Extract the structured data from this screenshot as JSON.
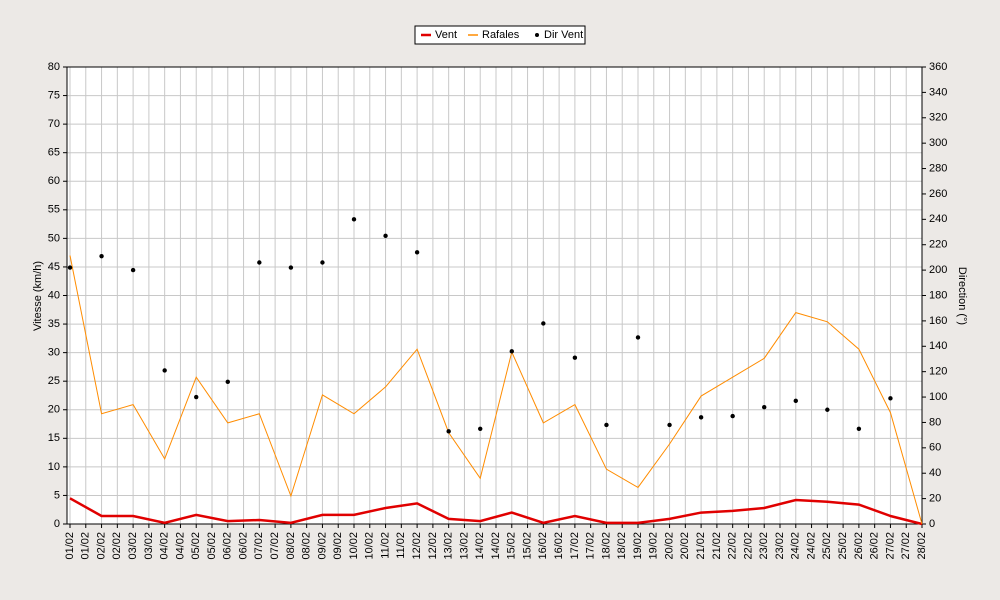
{
  "chart_data": {
    "type": "line",
    "ylabel": "Vitesse (km/h)",
    "y2label": "Direction (°)",
    "x": [
      0,
      1,
      2,
      3,
      4,
      5,
      6,
      7,
      8,
      9,
      10,
      11,
      12,
      13,
      14,
      15,
      16,
      17,
      18,
      19,
      20,
      21,
      22,
      23,
      24,
      25,
      26,
      27
    ],
    "xlim": [
      0,
      27
    ],
    "xticks": [
      {
        "value": 0,
        "label": "01/02"
      },
      {
        "value": 0.5,
        "label": "01/02"
      },
      {
        "value": 1,
        "label": "02/02"
      },
      {
        "value": 1.5,
        "label": "02/02"
      },
      {
        "value": 2,
        "label": "03/02"
      },
      {
        "value": 2.5,
        "label": "03/02"
      },
      {
        "value": 3,
        "label": "04/02"
      },
      {
        "value": 3.5,
        "label": "04/02"
      },
      {
        "value": 4,
        "label": "05/02"
      },
      {
        "value": 4.5,
        "label": "05/02"
      },
      {
        "value": 5,
        "label": "06/02"
      },
      {
        "value": 5.5,
        "label": "06/02"
      },
      {
        "value": 6,
        "label": "07/02"
      },
      {
        "value": 6.5,
        "label": "07/02"
      },
      {
        "value": 7,
        "label": "08/02"
      },
      {
        "value": 7.5,
        "label": "08/02"
      },
      {
        "value": 8,
        "label": "09/02"
      },
      {
        "value": 8.5,
        "label": "09/02"
      },
      {
        "value": 9,
        "label": "10/02"
      },
      {
        "value": 9.5,
        "label": "10/02"
      },
      {
        "value": 10,
        "label": "11/02"
      },
      {
        "value": 10.5,
        "label": "11/02"
      },
      {
        "value": 11,
        "label": "12/02"
      },
      {
        "value": 11.5,
        "label": "12/02"
      },
      {
        "value": 12,
        "label": "13/02"
      },
      {
        "value": 12.5,
        "label": "13/02"
      },
      {
        "value": 13,
        "label": "14/02"
      },
      {
        "value": 13.5,
        "label": "14/02"
      },
      {
        "value": 14,
        "label": "15/02"
      },
      {
        "value": 14.5,
        "label": "15/02"
      },
      {
        "value": 15,
        "label": "16/02"
      },
      {
        "value": 15.5,
        "label": "16/02"
      },
      {
        "value": 16,
        "label": "17/02"
      },
      {
        "value": 16.5,
        "label": "17/02"
      },
      {
        "value": 17,
        "label": "18/02"
      },
      {
        "value": 17.5,
        "label": "18/02"
      },
      {
        "value": 18,
        "label": "19/02"
      },
      {
        "value": 18.5,
        "label": "19/02"
      },
      {
        "value": 19,
        "label": "20/02"
      },
      {
        "value": 19.5,
        "label": "20/02"
      },
      {
        "value": 20,
        "label": "21/02"
      },
      {
        "value": 20.5,
        "label": "21/02"
      },
      {
        "value": 21,
        "label": "22/02"
      },
      {
        "value": 21.5,
        "label": "22/02"
      },
      {
        "value": 22,
        "label": "23/02"
      },
      {
        "value": 22.5,
        "label": "23/02"
      },
      {
        "value": 23,
        "label": "24/02"
      },
      {
        "value": 23.5,
        "label": "24/02"
      },
      {
        "value": 24,
        "label": "25/02"
      },
      {
        "value": 24.5,
        "label": "25/02"
      },
      {
        "value": 25,
        "label": "26/02"
      },
      {
        "value": 25.5,
        "label": "26/02"
      },
      {
        "value": 26,
        "label": "27/02"
      },
      {
        "value": 26.5,
        "label": "27/02"
      },
      {
        "value": 27,
        "label": "28/02"
      }
    ],
    "ylim": [
      0,
      80
    ],
    "yticks": [
      0,
      5,
      10,
      15,
      20,
      25,
      30,
      35,
      40,
      45,
      50,
      55,
      60,
      65,
      70,
      75,
      80
    ],
    "y2lim": [
      0,
      360
    ],
    "y2ticks": [
      0,
      20,
      40,
      60,
      80,
      100,
      120,
      140,
      160,
      180,
      200,
      220,
      240,
      260,
      280,
      300,
      320,
      340,
      360
    ],
    "grid": true,
    "series": [
      {
        "name": "Vent",
        "color": "#e00000",
        "values": [
          4.5,
          1.4,
          1.4,
          0.2,
          1.6,
          0.5,
          0.7,
          0.2,
          1.6,
          1.6,
          2.8,
          3.6,
          0.9,
          0.5,
          2,
          0.2,
          1.4,
          0.2,
          0.2,
          0.9,
          2,
          2.3,
          2.8,
          4.2,
          3.9,
          3.4,
          1.4,
          0
        ]
      },
      {
        "name": "Rafales",
        "color": "#ff8c00",
        "values": [
          47,
          19.3,
          20.9,
          11.4,
          25.7,
          17.7,
          19.3,
          4.9,
          22.6,
          19.3,
          24,
          30.6,
          16,
          8,
          30.1,
          17.7,
          20.9,
          9.6,
          6.4,
          14,
          22.4,
          25.7,
          29,
          37,
          35.4,
          30.6,
          19.5,
          0
        ]
      },
      {
        "name": "Dir Vent",
        "color": "#000000",
        "axis": "y2",
        "marker": "dot",
        "values": [
          202,
          211,
          200,
          121,
          100,
          112,
          206,
          202,
          206,
          240,
          227,
          214,
          73,
          75,
          136,
          158,
          131,
          78,
          147,
          78,
          84,
          85,
          92,
          97,
          90,
          75,
          99,
          null
        ]
      }
    ]
  }
}
